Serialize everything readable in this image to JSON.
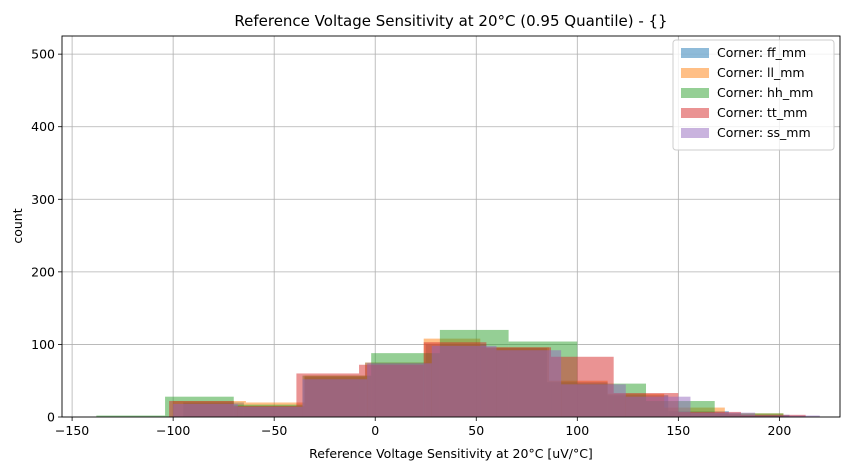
{
  "chart_data": {
    "type": "histogram",
    "title": "Reference Voltage Sensitivity at 20°C (0.95 Quantile) - {}",
    "xlabel": "Reference Voltage Sensitivity at 20°C [uV/°C]",
    "ylabel": "count",
    "xlim": [
      -155,
      230
    ],
    "ylim": [
      0,
      525
    ],
    "xticks": [
      -150,
      -100,
      -50,
      0,
      50,
      100,
      150,
      200
    ],
    "xtick_labels": [
      "−150",
      "−100",
      "−50",
      "0",
      "50",
      "100",
      "150",
      "200"
    ],
    "yticks": [
      0,
      100,
      200,
      300,
      400,
      500
    ],
    "ytick_labels": [
      "0",
      "100",
      "200",
      "300",
      "400",
      "500"
    ],
    "grid": true,
    "legend_position": "top-right",
    "series": [
      {
        "name": "Corner: ff_mm",
        "color": "#1f77b4",
        "opacity": 0.5,
        "bins": [
          [
            -95,
            -65,
            20
          ],
          [
            -65,
            -35,
            15
          ],
          [
            -35,
            -5,
            55
          ],
          [
            -5,
            25,
            75
          ],
          [
            25,
            55,
            100
          ],
          [
            55,
            85,
            95
          ],
          [
            85,
            115,
            48
          ],
          [
            115,
            145,
            30
          ],
          [
            145,
            175,
            8
          ],
          [
            175,
            205,
            3
          ]
        ]
      },
      {
        "name": "Corner: ll_mm",
        "color": "#ff7f0e",
        "opacity": 0.5,
        "bins": [
          [
            -100,
            -64,
            22
          ],
          [
            -64,
            -35,
            20
          ],
          [
            -35,
            -5,
            57
          ],
          [
            -5,
            24,
            75
          ],
          [
            24,
            52,
            108
          ],
          [
            52,
            86,
            96
          ],
          [
            86,
            115,
            50
          ],
          [
            115,
            143,
            32
          ],
          [
            143,
            173,
            13
          ],
          [
            173,
            202,
            5
          ]
        ]
      },
      {
        "name": "Corner: hh_mm",
        "color": "#2ca02c",
        "opacity": 0.5,
        "bins": [
          [
            -138,
            -104,
            2
          ],
          [
            -104,
            -70,
            28
          ],
          [
            -70,
            -36,
            17
          ],
          [
            -36,
            -2,
            57
          ],
          [
            -2,
            32,
            88
          ],
          [
            32,
            66,
            120
          ],
          [
            66,
            100,
            104
          ],
          [
            100,
            134,
            46
          ],
          [
            134,
            168,
            22
          ],
          [
            168,
            202,
            5
          ]
        ]
      },
      {
        "name": "Corner: tt_mm",
        "color": "#d62728",
        "opacity": 0.5,
        "bins": [
          [
            -102,
            -70,
            22
          ],
          [
            -70,
            -39,
            15
          ],
          [
            -39,
            -8,
            60
          ],
          [
            -8,
            24,
            72
          ],
          [
            24,
            55,
            103
          ],
          [
            55,
            87,
            96
          ],
          [
            87,
            118,
            83
          ],
          [
            118,
            150,
            33
          ],
          [
            150,
            181,
            7
          ],
          [
            181,
            213,
            3
          ]
        ]
      },
      {
        "name": "Corner: ss_mm",
        "color": "#9467bd",
        "opacity": 0.5,
        "bins": [
          [
            -100,
            -68,
            18
          ],
          [
            -68,
            -36,
            14
          ],
          [
            -36,
            -4,
            52
          ],
          [
            -4,
            28,
            74
          ],
          [
            28,
            60,
            98
          ],
          [
            60,
            92,
            92
          ],
          [
            92,
            124,
            45
          ],
          [
            124,
            156,
            28
          ],
          [
            156,
            188,
            6
          ],
          [
            188,
            220,
            2
          ]
        ]
      }
    ]
  }
}
